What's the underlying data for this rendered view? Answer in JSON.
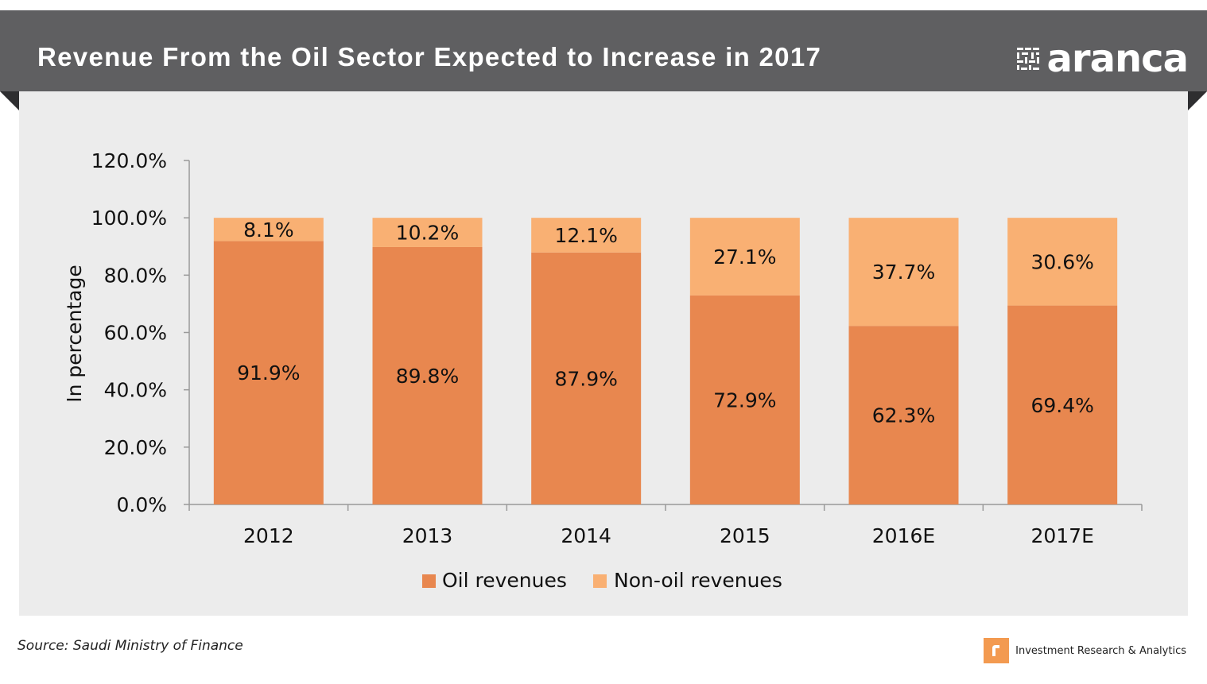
{
  "header": {
    "title": "Revenue From the Oil Sector Expected to Increase in 2017",
    "logo_text": "aranca"
  },
  "colors": {
    "header_bg": "#5f5f61",
    "panel_bg": "#ececec",
    "oil": "#e8874f",
    "non_oil": "#f9b073"
  },
  "chart_data": {
    "type": "bar",
    "stacked": true,
    "title": "Revenue From the Oil Sector Expected to Increase in 2017",
    "xlabel": "",
    "ylabel": "In percentage",
    "ylim": [
      0,
      120
    ],
    "yticks": [
      "0.0%",
      "20.0%",
      "40.0%",
      "60.0%",
      "80.0%",
      "100.0%",
      "120.0%"
    ],
    "categories": [
      "2012",
      "2013",
      "2014",
      "2015",
      "2016E",
      "2017E"
    ],
    "series": [
      {
        "name": "Oil revenues",
        "color": "#e8874f",
        "values": [
          91.9,
          89.8,
          87.9,
          72.9,
          62.3,
          69.4
        ],
        "labels": [
          "91.9%",
          "89.8%",
          "87.9%",
          "72.9%",
          "62.3%",
          "69.4%"
        ]
      },
      {
        "name": "Non-oil revenues",
        "color": "#f9b073",
        "values": [
          8.1,
          10.2,
          12.1,
          27.1,
          37.7,
          30.6
        ],
        "labels": [
          "8.1%",
          "10.2%",
          "12.1%",
          "27.1%",
          "37.7%",
          "30.6%"
        ]
      }
    ],
    "legend_position": "bottom",
    "grid": false
  },
  "footer": {
    "source": "Source: Saudi Ministry of Finance",
    "brand": "Investment  Research & Analytics"
  }
}
